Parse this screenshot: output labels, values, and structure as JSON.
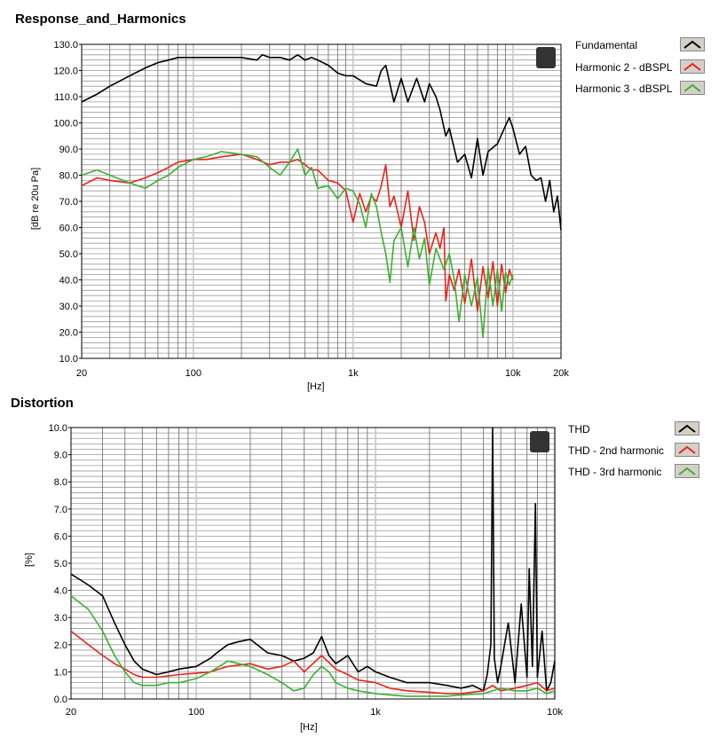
{
  "chart_data": [
    {
      "type": "line",
      "title": "Response_and_Harmonics",
      "xlabel": "[Hz]",
      "ylabel": "[dB re 20u Pa]",
      "xscale": "log",
      "xlim": [
        20,
        20000
      ],
      "ylim": [
        10,
        130
      ],
      "x_ticks": [
        20,
        100,
        1000,
        10000,
        20000
      ],
      "x_tick_labels": [
        "20",
        "100",
        "1k",
        "10k",
        "20k"
      ],
      "y_ticks": [
        10,
        20,
        30,
        40,
        50,
        60,
        70,
        80,
        90,
        100,
        110,
        120,
        130
      ],
      "y_tick_labels": [
        "10.0",
        "20.0",
        "30.0",
        "40.0",
        "50.0",
        "60.0",
        "70.0",
        "80.0",
        "90.0",
        "100.0",
        "110.0",
        "120.0",
        "130.0"
      ],
      "legend": "right",
      "series": [
        {
          "name": "Fundamental",
          "color": "#000000",
          "x": [
            20,
            25,
            30,
            40,
            50,
            60,
            70,
            80,
            100,
            120,
            150,
            200,
            250,
            270,
            300,
            350,
            400,
            450,
            500,
            550,
            600,
            700,
            800,
            900,
            1000,
            1200,
            1400,
            1500,
            1600,
            1800,
            2000,
            2200,
            2500,
            2800,
            3000,
            3300,
            3500,
            3800,
            4000,
            4500,
            5000,
            5500,
            6000,
            6500,
            7000,
            8000,
            9000,
            9500,
            10000,
            11000,
            12000,
            13000,
            14000,
            15000,
            16000,
            17000,
            18000,
            19000,
            20000
          ],
          "y": [
            108,
            111,
            114,
            118,
            121,
            123,
            124,
            125,
            125,
            125,
            125,
            125,
            124,
            126,
            125,
            125,
            124,
            126,
            124,
            125,
            124,
            122,
            119,
            118,
            118,
            115,
            114,
            120,
            122,
            108,
            117,
            108,
            117,
            108,
            115,
            110,
            105,
            95,
            98,
            85,
            88,
            79,
            94,
            80,
            89,
            92,
            99,
            102,
            98,
            88,
            91,
            80,
            78,
            79,
            70,
            78,
            66,
            72,
            59
          ]
        },
        {
          "name": "Harmonic 2 - dBSPL",
          "color": "#e8241c",
          "x": [
            20,
            25,
            30,
            40,
            50,
            60,
            70,
            80,
            100,
            120,
            150,
            200,
            250,
            300,
            350,
            400,
            450,
            500,
            550,
            600,
            700,
            800,
            900,
            1000,
            1100,
            1200,
            1300,
            1400,
            1500,
            1600,
            1700,
            1800,
            2000,
            2200,
            2400,
            2600,
            2800,
            3000,
            3300,
            3500,
            3700,
            3800,
            4000,
            4300,
            4600,
            5000,
            5500,
            6000,
            6500,
            7000,
            7500,
            8000,
            8500,
            9000,
            9500,
            10000
          ],
          "y": [
            76,
            79,
            78,
            77,
            79,
            81,
            83,
            85,
            86,
            86,
            87,
            88,
            86,
            84,
            85,
            85,
            86,
            84,
            82,
            82,
            78,
            77,
            74,
            62,
            73,
            66,
            72,
            70,
            76,
            84,
            68,
            72,
            60,
            74,
            55,
            68,
            62,
            50,
            58,
            52,
            60,
            32,
            42,
            36,
            44,
            31,
            48,
            28,
            45,
            33,
            47,
            30,
            46,
            35,
            44,
            40
          ]
        },
        {
          "name": "Harmonic 3 - dBSPL",
          "color": "#3cb030",
          "x": [
            20,
            25,
            30,
            40,
            50,
            60,
            70,
            80,
            100,
            120,
            150,
            200,
            250,
            300,
            350,
            400,
            450,
            500,
            550,
            600,
            700,
            800,
            900,
            1000,
            1100,
            1200,
            1300,
            1400,
            1500,
            1600,
            1700,
            1800,
            2000,
            2200,
            2400,
            2600,
            2800,
            3000,
            3300,
            3500,
            3700,
            4000,
            4300,
            4600,
            5000,
            5500,
            6000,
            6500,
            7000,
            7500,
            8000,
            8500,
            9000,
            9500,
            10000
          ],
          "y": [
            80,
            82,
            80,
            77,
            75,
            78,
            80,
            83,
            86,
            87,
            89,
            88,
            87,
            83,
            80,
            85,
            90,
            80,
            83,
            75,
            76,
            71,
            75,
            74,
            69,
            60,
            73,
            68,
            58,
            50,
            39,
            55,
            60,
            45,
            60,
            48,
            56,
            38,
            52,
            48,
            44,
            50,
            40,
            24,
            42,
            30,
            41,
            18,
            45,
            30,
            44,
            28,
            43,
            38,
            42
          ]
        }
      ]
    },
    {
      "type": "line",
      "title": "Distortion",
      "xlabel": "[Hz]",
      "ylabel": "[%]",
      "xscale": "log",
      "xlim": [
        20,
        10000
      ],
      "ylim": [
        0,
        10
      ],
      "x_ticks": [
        20,
        100,
        1000,
        10000
      ],
      "x_tick_labels": [
        "20",
        "100",
        "1k",
        "10k"
      ],
      "y_ticks": [
        0,
        1,
        2,
        3,
        4,
        5,
        6,
        7,
        8,
        9,
        10
      ],
      "y_tick_labels": [
        "0.0",
        "1.0",
        "2.0",
        "3.0",
        "4.0",
        "5.0",
        "6.0",
        "7.0",
        "8.0",
        "9.0",
        "10.0"
      ],
      "legend": "right",
      "series": [
        {
          "name": "THD",
          "color": "#000000",
          "x": [
            20,
            25,
            30,
            35,
            40,
            45,
            50,
            60,
            70,
            80,
            100,
            120,
            130,
            150,
            170,
            200,
            250,
            300,
            350,
            400,
            450,
            500,
            550,
            600,
            700,
            800,
            900,
            1000,
            1200,
            1500,
            2000,
            2500,
            3000,
            3500,
            4000,
            4200,
            4400,
            4500,
            4600,
            4800,
            5000,
            5500,
            6000,
            6500,
            7000,
            7200,
            7500,
            7800,
            8000,
            8500,
            9000,
            9500,
            10000
          ],
          "y": [
            4.6,
            4.2,
            3.8,
            2.8,
            2.0,
            1.4,
            1.1,
            0.9,
            1.0,
            1.1,
            1.2,
            1.5,
            1.7,
            2.0,
            2.1,
            2.2,
            1.7,
            1.6,
            1.4,
            1.5,
            1.7,
            2.3,
            1.6,
            1.3,
            1.6,
            1.0,
            1.2,
            1.0,
            0.8,
            0.6,
            0.6,
            0.5,
            0.4,
            0.5,
            0.3,
            0.9,
            2.0,
            10.0,
            1.5,
            0.6,
            1.2,
            2.8,
            0.6,
            3.5,
            0.8,
            4.8,
            1.2,
            7.2,
            0.8,
            2.5,
            0.3,
            0.6,
            1.4
          ]
        },
        {
          "name": "THD - 2nd harmonic",
          "color": "#e8241c",
          "x": [
            20,
            25,
            30,
            35,
            40,
            45,
            50,
            60,
            70,
            80,
            100,
            120,
            150,
            200,
            250,
            300,
            350,
            400,
            500,
            600,
            700,
            800,
            1000,
            1200,
            1500,
            2000,
            2500,
            3000,
            4000,
            4500,
            5000,
            6000,
            7000,
            8000,
            9000,
            10000
          ],
          "y": [
            2.5,
            2.0,
            1.6,
            1.3,
            1.1,
            0.9,
            0.8,
            0.8,
            0.85,
            0.9,
            0.95,
            1.0,
            1.2,
            1.3,
            1.1,
            1.2,
            1.4,
            1.0,
            1.6,
            1.1,
            0.9,
            0.7,
            0.6,
            0.4,
            0.3,
            0.25,
            0.2,
            0.2,
            0.3,
            0.5,
            0.3,
            0.4,
            0.5,
            0.6,
            0.3,
            0.4
          ]
        },
        {
          "name": "THD - 3rd harmonic",
          "color": "#3cb030",
          "x": [
            20,
            25,
            30,
            35,
            40,
            45,
            50,
            60,
            70,
            80,
            100,
            120,
            150,
            200,
            250,
            300,
            350,
            400,
            450,
            500,
            550,
            600,
            700,
            800,
            1000,
            1200,
            1500,
            2000,
            2500,
            3000,
            4000,
            4500,
            5000,
            6000,
            7000,
            8000,
            9000,
            10000
          ],
          "y": [
            3.8,
            3.3,
            2.5,
            1.6,
            1.0,
            0.6,
            0.5,
            0.5,
            0.6,
            0.6,
            0.75,
            1.0,
            1.4,
            1.2,
            0.9,
            0.6,
            0.3,
            0.4,
            0.9,
            1.2,
            1.0,
            0.6,
            0.4,
            0.3,
            0.2,
            0.15,
            0.1,
            0.1,
            0.1,
            0.15,
            0.2,
            0.3,
            0.4,
            0.3,
            0.3,
            0.4,
            0.2,
            0.3
          ]
        }
      ]
    }
  ]
}
